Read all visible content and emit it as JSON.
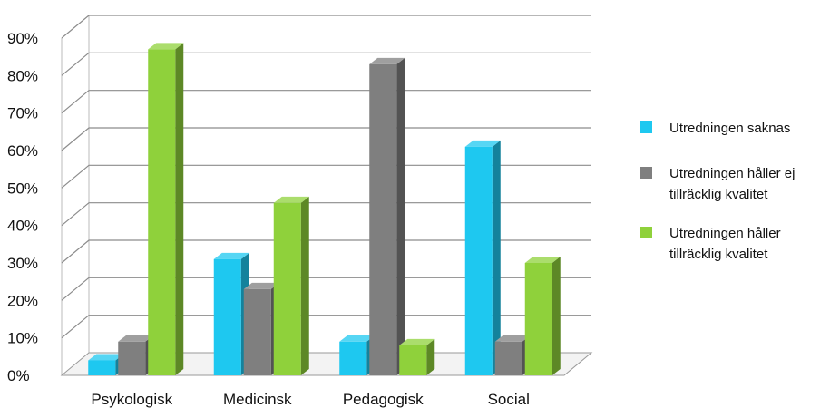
{
  "chart_data": {
    "type": "bar",
    "categories": [
      "Psykologisk",
      "Medicinsk",
      "Pedagogisk",
      "Social"
    ],
    "series": [
      {
        "name": "Utredningen saknas",
        "color": "#1ec8f0",
        "values": [
          4,
          31,
          9,
          61
        ]
      },
      {
        "name": "Utredningen håller ej tillräcklig kvalitet",
        "color": "#7f7f7f",
        "values": [
          9,
          23,
          83,
          9
        ]
      },
      {
        "name": "Utredningen håller tillräcklig kvalitet",
        "color": "#8fd13b",
        "values": [
          87,
          46,
          8,
          30
        ]
      }
    ],
    "y_ticks": [
      "0%",
      "10%",
      "20%",
      "30%",
      "40%",
      "50%",
      "60%",
      "70%",
      "80%",
      "90%"
    ],
    "ylim": [
      0,
      90
    ],
    "y_unit": "%",
    "grid": true,
    "style": "3d-clustered-column",
    "legend_position": "right",
    "title": "",
    "xlabel": "",
    "ylabel": ""
  }
}
